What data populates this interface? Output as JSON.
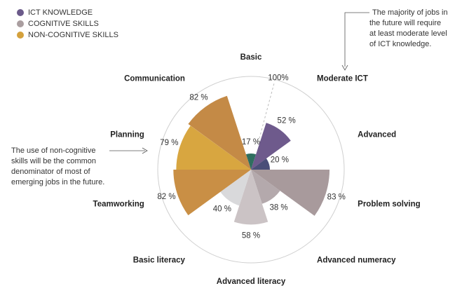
{
  "chart_data": {
    "type": "polar_area",
    "legend": [
      {
        "name": "ICT KNOWLEDGE",
        "color": "#6b5a8a"
      },
      {
        "name": "COGNITIVE SKILLS",
        "color": "#aa9ea0"
      },
      {
        "name": "NON-COGNITIVE SKILLS",
        "color": "#d4a13d"
      }
    ],
    "categories": [
      "Basic",
      "Moderate ICT",
      "Advanced",
      "Problem solving",
      "Advanced numeracy",
      "Advanced literacy",
      "Basic literacy",
      "Teamworking",
      "Planning",
      "Communication"
    ],
    "values": [
      17,
      52,
      20,
      83,
      38,
      58,
      40,
      82,
      79,
      82
    ],
    "value_labels": [
      "17 %",
      "52 %",
      "20 %",
      "83 %",
      "38 %",
      "58 %",
      "40 %",
      "82 %",
      "79 %",
      "82 %"
    ],
    "colors": [
      "#2f6e5f",
      "#6e5a8c",
      "#4a4e78",
      "#a89a9c",
      "#b4a9ac",
      "#cbc3c5",
      "#d9d9db",
      "#c98f45",
      "#d8a640",
      "#c48a46"
    ],
    "rlim": [
      0,
      100
    ],
    "rticks": [
      {
        "value": 100,
        "label": "100%"
      }
    ],
    "annotations": [
      [
        "The majority of jobs in",
        "the future will require",
        "at least moderate level",
        "of ICT knowledge."
      ],
      [
        "The use of non-cognitive",
        "skills will be the common",
        "denominator of most of",
        "emerging jobs in the future."
      ]
    ]
  }
}
